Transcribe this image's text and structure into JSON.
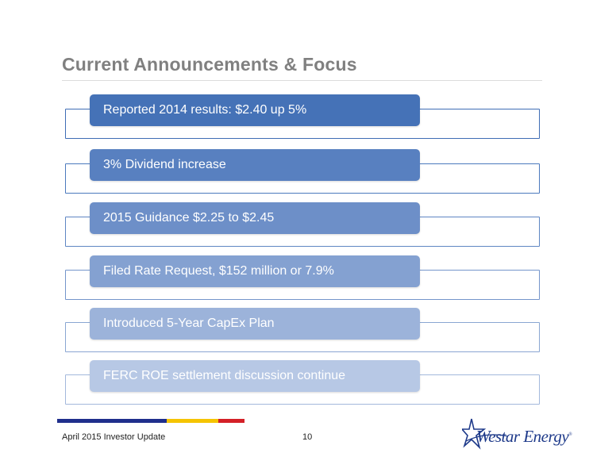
{
  "slide": {
    "title": "Current Announcements & Focus"
  },
  "items": [
    {
      "label": "Reported 2014 results: $2.40 up 5%",
      "bar_color": "#4572b7",
      "outline_color": "#3f6db5"
    },
    {
      "label": "3% Dividend increase",
      "bar_color": "#5880c0",
      "outline_color": "#4b79bd"
    },
    {
      "label": "2015 Guidance $2.25 to $2.45",
      "bar_color": "#6d8fc8",
      "outline_color": "#5e86c3"
    },
    {
      "label": "Filed Rate Request, $152 million or 7.9%",
      "bar_color": "#84a1d1",
      "outline_color": "#7495cb"
    },
    {
      "label": "Introduced 5-Year CapEx Plan",
      "bar_color": "#9cb3da",
      "outline_color": "#8aa6d2"
    },
    {
      "label": "FERC ROE settlement discussion continue",
      "bar_color": "#b7c8e5",
      "outline_color": "#a3b8dc"
    }
  ],
  "footer": {
    "left_text": "April 2015 Investor Update",
    "page_number": "10",
    "logo_text": "Westar Energy",
    "logo_mark": "®",
    "stripe_colors": [
      "#1f2f8c",
      "#f5c400",
      "#d42027"
    ]
  }
}
